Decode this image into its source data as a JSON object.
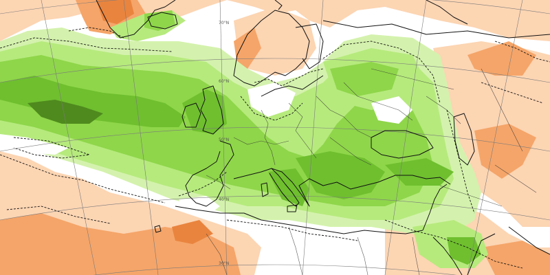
{
  "map": {
    "palette": {
      "green_dark": "#4f8a1e",
      "green_mid": "#6fbf2f",
      "green": "#8fd64a",
      "green_light": "#b6ea7d",
      "green_pale": "#d4f2ad",
      "white": "#ffffff",
      "orange_pale": "#fcd5b3",
      "orange": "#f5a569",
      "orange_dark": "#e9843e"
    },
    "latitude_labels": [
      "70°N",
      "60°N",
      "50°N",
      "40°N",
      "30°N"
    ],
    "layers": [
      "precipitation-anomaly-shading",
      "coastlines",
      "country-borders",
      "dashed-contours",
      "graticule"
    ]
  }
}
